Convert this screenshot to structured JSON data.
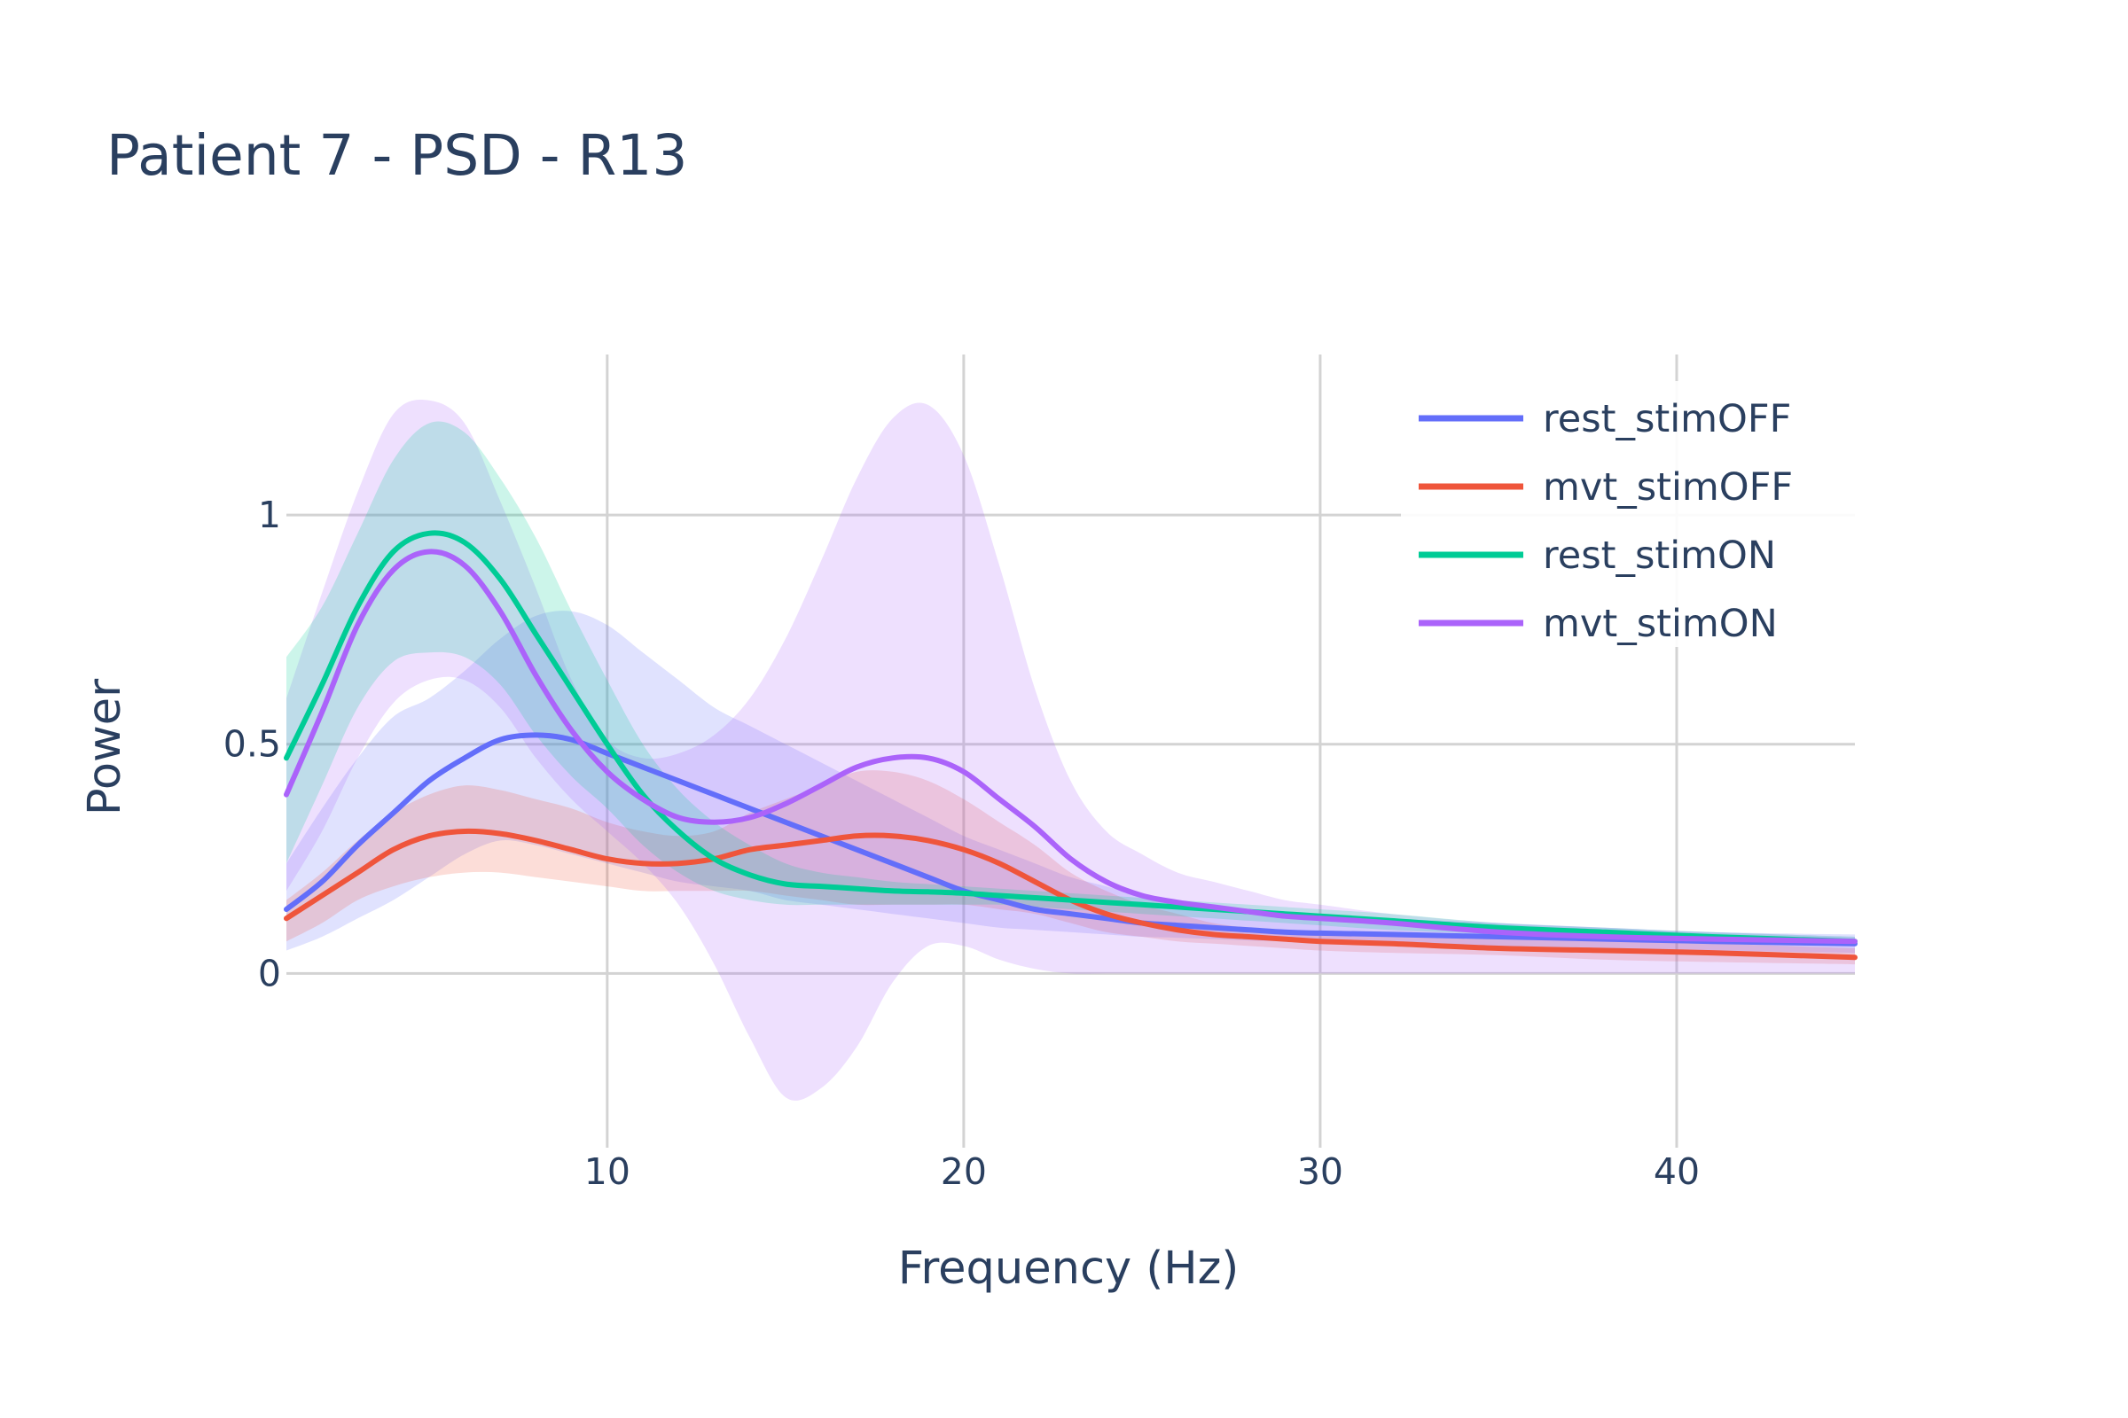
{
  "chart_data": {
    "type": "line",
    "title": "Patient 7 - PSD - R13",
    "xlabel": "Frequency (Hz)",
    "ylabel": "Power",
    "xlim": [
      1,
      45
    ],
    "ylim": [
      -0.38,
      1.35
    ],
    "xticks": [
      10,
      20,
      30,
      40
    ],
    "yticks": [
      0,
      0.5,
      1
    ],
    "ytick_labels": [
      "0",
      "0.5",
      "1"
    ],
    "grid": true,
    "legend_position": "top-right",
    "x": [
      1,
      2,
      3,
      4,
      5,
      6,
      7,
      8,
      9,
      10,
      11,
      12,
      13,
      14,
      15,
      16,
      17,
      18,
      19,
      20,
      21,
      22,
      23,
      24,
      25,
      26,
      27,
      28,
      29,
      30,
      32,
      35,
      38,
      41,
      45
    ],
    "series": [
      {
        "name": "rest_stimOFF",
        "color": "#636efa",
        "values": [
          0.14,
          0.2,
          0.28,
          0.35,
          0.42,
          0.47,
          0.51,
          0.52,
          0.51,
          0.48,
          0.45,
          0.42,
          0.39,
          0.36,
          0.33,
          0.3,
          0.27,
          0.24,
          0.21,
          0.18,
          0.16,
          0.14,
          0.13,
          0.12,
          0.11,
          0.105,
          0.1,
          0.095,
          0.09,
          0.088,
          0.085,
          0.08,
          0.075,
          0.07,
          0.065
        ],
        "upper": [
          0.24,
          0.36,
          0.47,
          0.56,
          0.6,
          0.66,
          0.73,
          0.78,
          0.79,
          0.76,
          0.7,
          0.64,
          0.58,
          0.54,
          0.5,
          0.46,
          0.42,
          0.38,
          0.34,
          0.3,
          0.27,
          0.24,
          0.21,
          0.19,
          0.17,
          0.16,
          0.15,
          0.14,
          0.135,
          0.13,
          0.12,
          0.11,
          0.1,
          0.09,
          0.085
        ],
        "lower": [
          0.05,
          0.08,
          0.12,
          0.16,
          0.21,
          0.26,
          0.29,
          0.28,
          0.26,
          0.24,
          0.22,
          0.2,
          0.19,
          0.18,
          0.16,
          0.15,
          0.14,
          0.13,
          0.12,
          0.11,
          0.1,
          0.095,
          0.09,
          0.085,
          0.08,
          0.078,
          0.075,
          0.072,
          0.07,
          0.068,
          0.065,
          0.06,
          0.055,
          0.05,
          0.045
        ]
      },
      {
        "name": "mvt_stimOFF",
        "color": "#ef553b",
        "values": [
          0.12,
          0.17,
          0.22,
          0.27,
          0.3,
          0.31,
          0.305,
          0.29,
          0.27,
          0.25,
          0.24,
          0.24,
          0.25,
          0.27,
          0.28,
          0.29,
          0.3,
          0.3,
          0.29,
          0.27,
          0.24,
          0.2,
          0.16,
          0.13,
          0.11,
          0.095,
          0.085,
          0.08,
          0.075,
          0.07,
          0.065,
          0.055,
          0.05,
          0.045,
          0.035
        ],
        "upper": [
          0.16,
          0.22,
          0.29,
          0.35,
          0.39,
          0.41,
          0.4,
          0.38,
          0.36,
          0.33,
          0.31,
          0.3,
          0.31,
          0.35,
          0.38,
          0.41,
          0.44,
          0.44,
          0.42,
          0.38,
          0.33,
          0.28,
          0.22,
          0.18,
          0.15,
          0.13,
          0.11,
          0.1,
          0.095,
          0.09,
          0.085,
          0.075,
          0.07,
          0.065,
          0.055
        ],
        "lower": [
          0.07,
          0.11,
          0.16,
          0.19,
          0.21,
          0.22,
          0.22,
          0.21,
          0.2,
          0.19,
          0.18,
          0.18,
          0.18,
          0.18,
          0.17,
          0.16,
          0.15,
          0.15,
          0.15,
          0.15,
          0.14,
          0.13,
          0.11,
          0.09,
          0.08,
          0.07,
          0.065,
          0.06,
          0.055,
          0.05,
          0.045,
          0.04,
          0.03,
          0.025,
          0.02
        ]
      },
      {
        "name": "rest_stimON",
        "color": "#00cc96",
        "values": [
          0.47,
          0.63,
          0.8,
          0.92,
          0.96,
          0.94,
          0.86,
          0.74,
          0.62,
          0.5,
          0.39,
          0.31,
          0.25,
          0.215,
          0.195,
          0.19,
          0.185,
          0.18,
          0.178,
          0.175,
          0.17,
          0.165,
          0.16,
          0.155,
          0.15,
          0.145,
          0.14,
          0.135,
          0.13,
          0.125,
          0.115,
          0.1,
          0.09,
          0.08,
          0.07
        ],
        "upper": [
          0.69,
          0.8,
          0.96,
          1.12,
          1.2,
          1.18,
          1.08,
          0.95,
          0.79,
          0.64,
          0.5,
          0.4,
          0.33,
          0.28,
          0.24,
          0.22,
          0.21,
          0.2,
          0.195,
          0.19,
          0.185,
          0.18,
          0.175,
          0.17,
          0.165,
          0.16,
          0.155,
          0.15,
          0.145,
          0.14,
          0.13,
          0.11,
          0.1,
          0.09,
          0.08
        ],
        "lower": [
          0.24,
          0.41,
          0.58,
          0.68,
          0.7,
          0.69,
          0.63,
          0.52,
          0.43,
          0.36,
          0.28,
          0.22,
          0.18,
          0.16,
          0.15,
          0.15,
          0.15,
          0.15,
          0.15,
          0.15,
          0.15,
          0.145,
          0.14,
          0.135,
          0.13,
          0.125,
          0.12,
          0.115,
          0.11,
          0.105,
          0.095,
          0.085,
          0.075,
          0.065,
          0.06
        ]
      },
      {
        "name": "mvt_stimON",
        "color": "#ab63fa",
        "values": [
          0.39,
          0.57,
          0.76,
          0.88,
          0.92,
          0.89,
          0.79,
          0.65,
          0.53,
          0.44,
          0.38,
          0.34,
          0.33,
          0.34,
          0.37,
          0.41,
          0.45,
          0.47,
          0.47,
          0.44,
          0.38,
          0.32,
          0.25,
          0.2,
          0.17,
          0.155,
          0.145,
          0.135,
          0.125,
          0.12,
          0.11,
          0.09,
          0.08,
          0.075,
          0.07
        ],
        "upper": [
          0.6,
          0.83,
          1.05,
          1.22,
          1.25,
          1.2,
          1.03,
          0.84,
          0.64,
          0.51,
          0.47,
          0.48,
          0.52,
          0.6,
          0.73,
          0.9,
          1.08,
          1.21,
          1.24,
          1.13,
          0.89,
          0.62,
          0.42,
          0.31,
          0.26,
          0.22,
          0.2,
          0.18,
          0.16,
          0.15,
          0.13,
          0.11,
          0.1,
          0.09,
          0.08
        ],
        "lower": [
          0.18,
          0.31,
          0.47,
          0.59,
          0.64,
          0.64,
          0.58,
          0.47,
          0.38,
          0.31,
          0.24,
          0.15,
          0.02,
          -0.14,
          -0.27,
          -0.25,
          -0.16,
          -0.02,
          0.06,
          0.06,
          0.03,
          0.01,
          0.0,
          0.0,
          0.0,
          0.0,
          0.0,
          0.0,
          0.0,
          0.0,
          0.0,
          0.0,
          0.0,
          0.0,
          0.0
        ]
      }
    ]
  }
}
